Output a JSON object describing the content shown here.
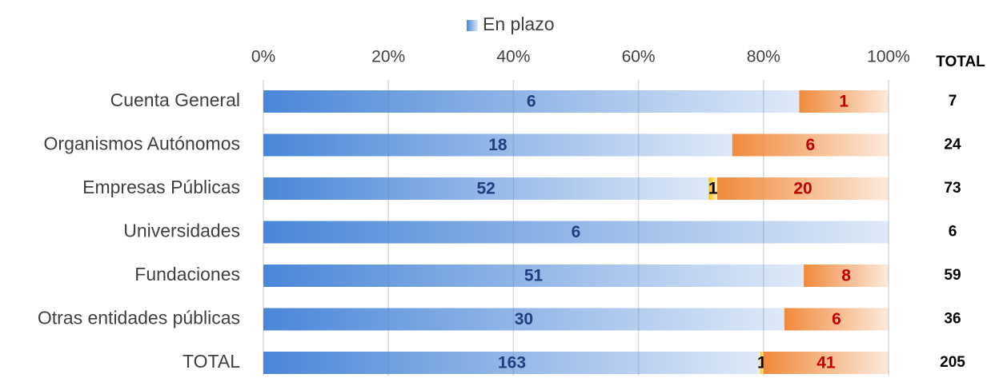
{
  "chart_data": {
    "type": "stacked_bar_100",
    "categories": [
      "Cuenta General",
      "Organismos Autónomos",
      "Empresas Públicas",
      "Universidades",
      "Fundaciones",
      "Otras entidades públicas",
      "TOTAL"
    ],
    "series": [
      {
        "name": "En plazo",
        "color": "#4a86d8",
        "label_color": "#1f3f7f",
        "values": [
          6,
          18,
          52,
          6,
          51,
          30,
          163
        ]
      },
      {
        "color": "#ffc000",
        "label_color": "#000000",
        "values": [
          null,
          null,
          1,
          null,
          null,
          null,
          1
        ]
      },
      {
        "color": "#f08a3c",
        "label_color": "#c00000",
        "values": [
          1,
          6,
          20,
          null,
          8,
          6,
          41
        ]
      }
    ],
    "totals_header": "TOTAL",
    "totals": [
      7,
      24,
      73,
      6,
      59,
      36,
      205
    ],
    "xlim": [
      0,
      100
    ],
    "xticks": [
      {
        "value": 0,
        "label": "0%"
      },
      {
        "value": 20,
        "label": "20%"
      },
      {
        "value": 40,
        "label": "40%"
      },
      {
        "value": 60,
        "label": "60%"
      },
      {
        "value": 80,
        "label": "80%"
      },
      {
        "value": 100,
        "label": "100%"
      }
    ],
    "grid": true,
    "legend": "top"
  }
}
